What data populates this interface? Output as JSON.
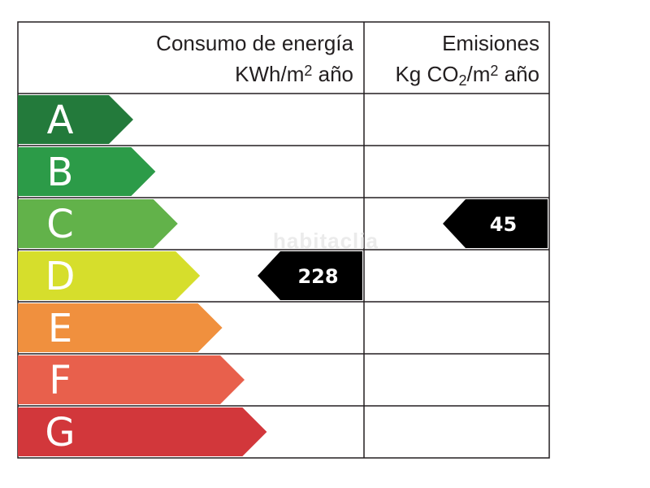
{
  "chart_data": {
    "type": "table",
    "title": "",
    "columns": [
      {
        "label_line1": "Consumo de energía",
        "label_line2_prefix": "KWh/m",
        "label_line2_sup": "2",
        "label_line2_suffix": " año"
      },
      {
        "label_line1": "Emisiones",
        "label_line2_prefix": "Kg CO",
        "label_line2_sub": "2",
        "label_line2_mid": "/m",
        "label_line2_sup": "2",
        "label_line2_suffix": " año"
      }
    ],
    "categories": [
      "A",
      "B",
      "C",
      "D",
      "E",
      "F",
      "G"
    ],
    "category_colors": [
      "#237a3b",
      "#2c9b48",
      "#62b24a",
      "#d6de2c",
      "#f0903e",
      "#e8604c",
      "#d2373b"
    ],
    "energy_consumption": {
      "value": "228",
      "class": "D"
    },
    "emissions": {
      "value": "45",
      "class": "C"
    },
    "marker_color": "#000000",
    "watermark": "habitaclia"
  }
}
